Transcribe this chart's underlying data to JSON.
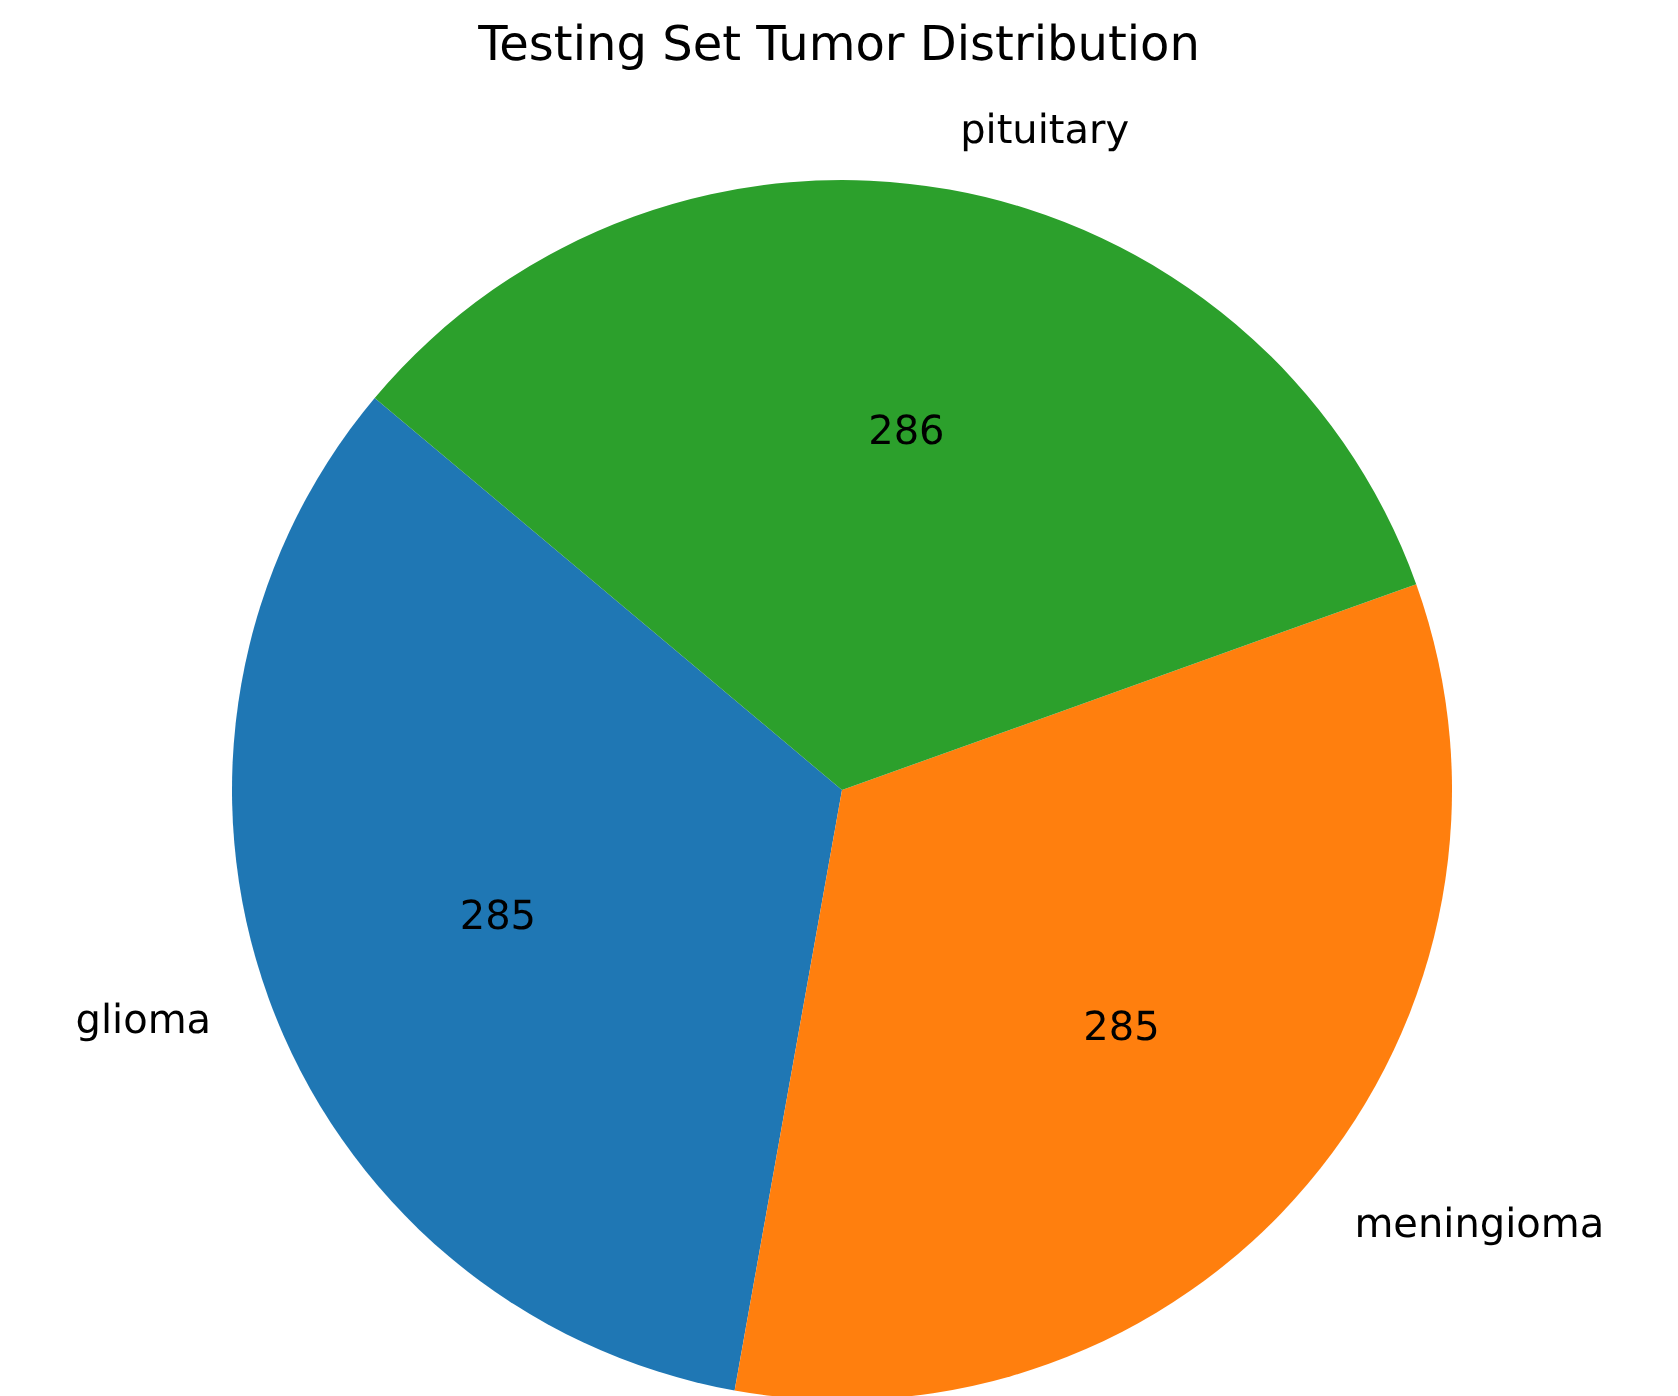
{
  "chart_data": {
    "type": "pie",
    "title": "Testing Set Tumor Distribution",
    "categories": [
      "glioma",
      "meningioma",
      "pituitary"
    ],
    "values": [
      285,
      285,
      286
    ],
    "colors": [
      "#1f77b4",
      "#ff7f0e",
      "#2ca02c"
    ],
    "data_labels": true
  }
}
